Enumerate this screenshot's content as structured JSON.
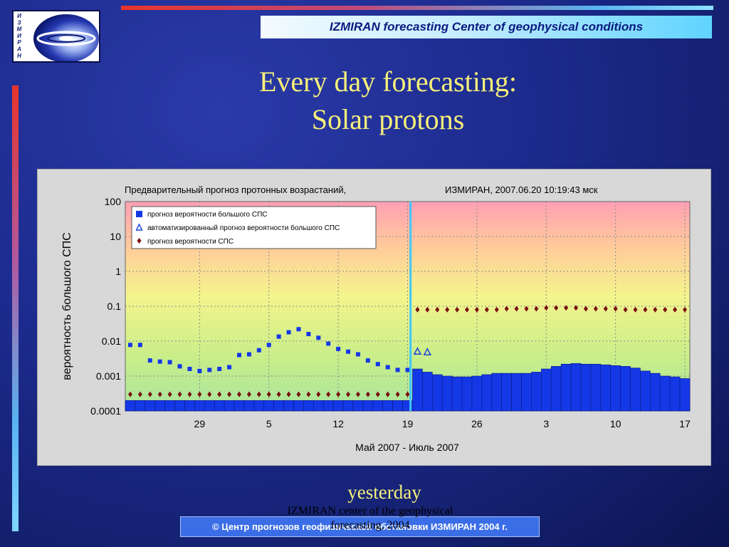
{
  "header": {
    "banner_text": "IZMIRAN forecasting Center of geophysical conditions"
  },
  "logo": {
    "letters": [
      "И",
      "З",
      "М",
      "И",
      "Р",
      "А",
      "Н"
    ],
    "colors": {
      "swirl": "#1a2a9a",
      "center": "#ffffff"
    }
  },
  "slide": {
    "title_line1": "Every day forecasting:",
    "title_line2": "Solar protons",
    "caption": "yesterday"
  },
  "footer": {
    "overlay_line1": "IZMIRAN center of the geophysical",
    "overlay_line2": "forecasting, 2004",
    "copyright": "©  Центр прогнозов геофизической обстановки ИЗМИРАН  2004 г."
  },
  "colors": {
    "title": "#f6f07a",
    "bars": "#1438e6",
    "diamonds": "#7a1010",
    "triangles": "#1a44d8",
    "now_line": "#40c8ff"
  },
  "chart_data": {
    "type": "bar",
    "title": "Предварительный прогноз протонных возрастаний,",
    "subtitle": "ИЗМИРАН, 2007.06.20 10:19:43 мск",
    "xlabel": "Май 2007 - Июль 2007",
    "ylabel": "вероятность большого СПС",
    "y_scale": "log",
    "ylim": [
      0.0001,
      100
    ],
    "y_ticks": [
      "100",
      "10",
      "1",
      "0.1",
      "0.01",
      "0.001",
      "0.0001"
    ],
    "x_ticks": [
      {
        "label": "29",
        "day": 29
      },
      {
        "label": "5",
        "day": 36
      },
      {
        "label": "12",
        "day": 43
      },
      {
        "label": "19",
        "day": 50
      },
      {
        "label": "26",
        "day": 57
      },
      {
        "label": "3",
        "day": 64
      },
      {
        "label": "10",
        "day": 71
      },
      {
        "label": "17",
        "day": 78
      }
    ],
    "legend": {
      "position": "top-left",
      "entries": [
        "прогноз вероятности большого СПС",
        "автоматизированный прогноз вероятности большого СПС",
        "прогноз вероятности СПС"
      ]
    },
    "grid": true,
    "now_day": 50.3,
    "series": [
      {
        "name": "прогноз вероятности большого СПС",
        "kind": "points",
        "days": [
          22,
          23,
          24,
          25,
          26,
          27,
          28,
          29,
          30,
          31,
          32,
          33,
          34,
          35,
          36,
          37,
          38,
          39,
          40,
          41,
          42,
          43,
          44,
          45,
          46,
          47,
          48,
          49,
          50
        ],
        "values": [
          0.0078,
          0.0078,
          0.0028,
          0.0026,
          0.0025,
          0.0019,
          0.0016,
          0.0014,
          0.0015,
          0.0016,
          0.0018,
          0.004,
          0.0042,
          0.0055,
          0.0078,
          0.0135,
          0.018,
          0.022,
          0.016,
          0.0125,
          0.0085,
          0.006,
          0.005,
          0.0042,
          0.0028,
          0.0022,
          0.0018,
          0.0015,
          0.0015
        ]
      },
      {
        "name": "прогноз вероятности большого СПС",
        "kind": "bars",
        "days": [
          22,
          23,
          24,
          25,
          26,
          27,
          28,
          29,
          30,
          31,
          32,
          33,
          34,
          35,
          36,
          37,
          38,
          39,
          40,
          41,
          42,
          43,
          44,
          45,
          46,
          47,
          48,
          49,
          50,
          51,
          52,
          53,
          54,
          55,
          56,
          57,
          58,
          59,
          60,
          61,
          62,
          63,
          64,
          65,
          66,
          67,
          68,
          69,
          70,
          71,
          72,
          73,
          74,
          75,
          76,
          77,
          78
        ],
        "values": [
          0.0002,
          0.0002,
          0.0002,
          0.0002,
          0.0002,
          0.0002,
          0.0002,
          0.0002,
          0.0002,
          0.0002,
          0.0002,
          0.0002,
          0.0002,
          0.0002,
          0.0002,
          0.0002,
          0.0002,
          0.0002,
          0.0002,
          0.0002,
          0.0002,
          0.0002,
          0.0002,
          0.0002,
          0.0002,
          0.0002,
          0.0002,
          0.0002,
          0.0002,
          0.0016,
          0.0013,
          0.0011,
          0.001,
          0.00095,
          0.00095,
          0.001,
          0.0011,
          0.0012,
          0.0012,
          0.0012,
          0.0012,
          0.0013,
          0.0016,
          0.0019,
          0.0022,
          0.0023,
          0.0022,
          0.0022,
          0.0021,
          0.002,
          0.0019,
          0.0017,
          0.0014,
          0.0012,
          0.001,
          0.00095,
          0.00085
        ]
      },
      {
        "name": "автоматизированный прогноз вероятности большого СПС",
        "kind": "triangles",
        "days": [
          51,
          52
        ],
        "values": [
          0.005,
          0.0048
        ]
      },
      {
        "name": "прогноз вероятности СПС",
        "kind": "diamonds",
        "days": [
          22,
          23,
          24,
          25,
          26,
          27,
          28,
          29,
          30,
          31,
          32,
          33,
          34,
          35,
          36,
          37,
          38,
          39,
          40,
          41,
          42,
          43,
          44,
          45,
          46,
          47,
          48,
          49,
          50,
          51,
          52,
          53,
          54,
          55,
          56,
          57,
          58,
          59,
          60,
          61,
          62,
          63,
          64,
          65,
          66,
          67,
          68,
          69,
          70,
          71,
          72,
          73,
          74,
          75,
          76,
          77,
          78
        ],
        "values": [
          0.0003,
          0.0003,
          0.0003,
          0.0003,
          0.0003,
          0.0003,
          0.0003,
          0.0003,
          0.0003,
          0.0003,
          0.0003,
          0.0003,
          0.0003,
          0.0003,
          0.0003,
          0.0003,
          0.0003,
          0.0003,
          0.0003,
          0.0003,
          0.0003,
          0.0003,
          0.0003,
          0.0003,
          0.0003,
          0.0003,
          0.0003,
          0.0003,
          0.0003,
          0.08,
          0.08,
          0.08,
          0.08,
          0.08,
          0.08,
          0.08,
          0.08,
          0.08,
          0.085,
          0.085,
          0.085,
          0.085,
          0.09,
          0.09,
          0.09,
          0.09,
          0.085,
          0.085,
          0.085,
          0.085,
          0.08,
          0.08,
          0.08,
          0.08,
          0.08,
          0.08,
          0.08
        ]
      }
    ]
  }
}
